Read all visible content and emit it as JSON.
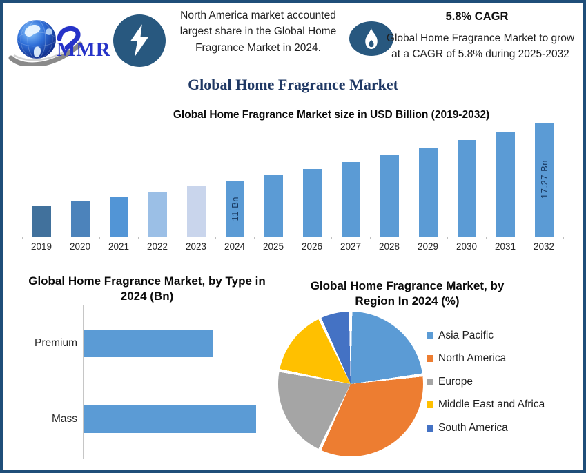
{
  "theme": {
    "frame_border": "#1F4E79",
    "background": "#FFFFFF",
    "badge_color": "#28587F",
    "page_title_color": "#1F3864",
    "logo_text_color": "#2633C8"
  },
  "header": {
    "logo": {
      "text": "MMR",
      "icon": "globe-swoosh-logo"
    },
    "left_callout": {
      "icon": "lightning-icon",
      "text": "North America market accounted largest share in the Global Home Fragrance Market in 2024."
    },
    "right_callout": {
      "icon": "flame-icon",
      "heading": "5.8% CAGR",
      "text": "Global Home Fragrance Market to grow at a CAGR of 5.8% during 2025-2032"
    }
  },
  "page_title": "Global Home Fragrance Market",
  "chart_data": [
    {
      "id": "market-size-by-year",
      "type": "bar",
      "title": "Global Home Fragrance Market size in USD Billion (2019-2032)",
      "categories": [
        "2019",
        "2020",
        "2021",
        "2022",
        "2023",
        "2024",
        "2025",
        "2026",
        "2027",
        "2028",
        "2029",
        "2030",
        "2031",
        "2032"
      ],
      "values": [
        8.3,
        8.8,
        9.3,
        9.8,
        10.4,
        11,
        11.64,
        12.31,
        13.03,
        13.78,
        14.58,
        15.43,
        16.32,
        17.27
      ],
      "unit": "USD Bn",
      "bar_labels": {
        "2024": "11 Bn",
        "2032": "17.27 Bn"
      },
      "bar_colors": [
        "#41719C",
        "#4C83BB",
        "#5295D6",
        "#9BBFE6",
        "#C9D5EC",
        "#5B9BD5",
        "#5B9BD5",
        "#5B9BD5",
        "#5B9BD5",
        "#5B9BD5",
        "#5B9BD5",
        "#5B9BD5",
        "#5B9BD5",
        "#5B9BD5"
      ],
      "bar_label_color": "#17375E",
      "ylim": [
        5,
        17.27
      ],
      "grid": false,
      "axis_color": "#BFBFBF",
      "xlabel": "",
      "ylabel": ""
    },
    {
      "id": "by-type-2024",
      "type": "bar",
      "orientation": "horizontal",
      "title": "Global Home Fragrance Market, by Type in 2024 (Bn)",
      "categories": [
        "Premium",
        "Mass"
      ],
      "values": [
        4.7,
        6.3
      ],
      "bar_color": "#5B9BD5",
      "xlim": [
        0,
        6.3
      ],
      "grid": false,
      "axis_color": "#C6C6C6"
    },
    {
      "id": "by-region-2024",
      "type": "pie",
      "title": "Global Home Fragrance Market, by Region In 2024 (%)",
      "labels": [
        "Asia Pacific",
        "North America",
        "Europe",
        "Middle East and Africa",
        "South America"
      ],
      "values": [
        23,
        34,
        21,
        15,
        7
      ],
      "colors": [
        "#5B9BD5",
        "#ED7D31",
        "#A5A5A5",
        "#FFC000",
        "#4472C4"
      ],
      "legend_position": "right",
      "start_angle_deg": 0,
      "slice_border_color": "#FFFFFF"
    }
  ]
}
